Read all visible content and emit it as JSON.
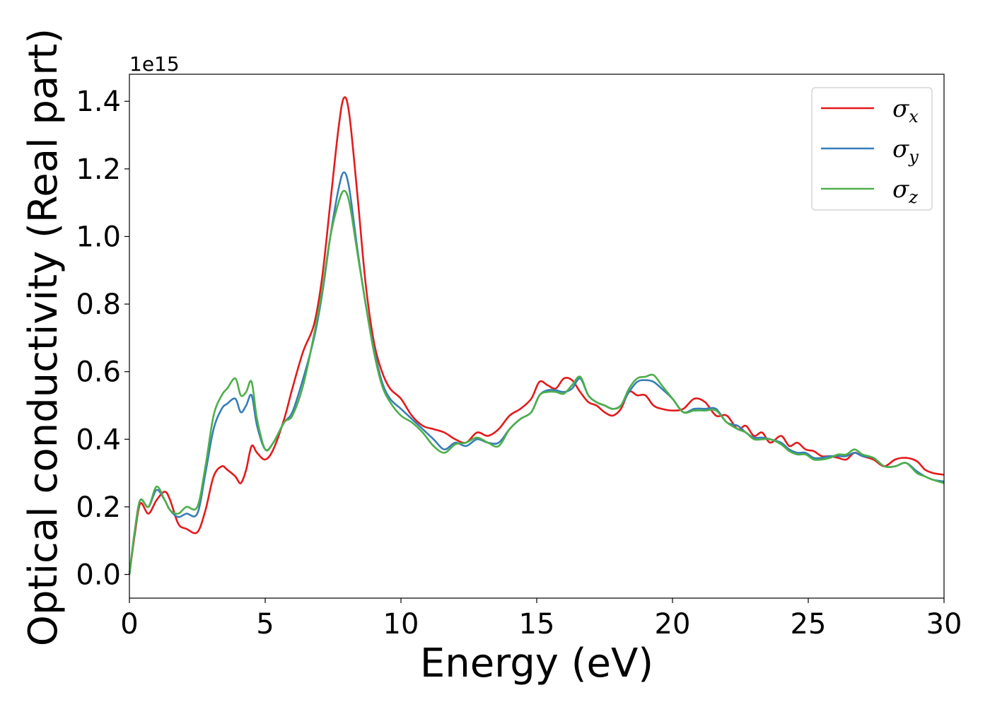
{
  "chart_data": {
    "type": "line",
    "xlabel": "Energy (eV)",
    "ylabel": "Optical conductivity (Real part)",
    "y_offset_label": "1e15",
    "xlim": [
      0,
      30
    ],
    "ylim": [
      -0.07,
      1.48
    ],
    "x_ticks": [
      0,
      5,
      10,
      15,
      20,
      25,
      30
    ],
    "x_tick_labels": [
      "0",
      "5",
      "10",
      "15",
      "20",
      "25",
      "30"
    ],
    "y_ticks": [
      0.0,
      0.2,
      0.4,
      0.6,
      0.8,
      1.0,
      1.2,
      1.4
    ],
    "y_tick_labels": [
      "0.0",
      "0.2",
      "0.4",
      "0.6",
      "0.8",
      "1.0",
      "1.2",
      "1.4"
    ],
    "grid": false,
    "legend_position": "top-right",
    "series": [
      {
        "name": "σ_x",
        "sym": "σ",
        "sub": "x",
        "color": "#e41a1c",
        "x": [
          0,
          0.2,
          0.4,
          0.7,
          1.0,
          1.3,
          1.5,
          1.8,
          2.1,
          2.5,
          2.8,
          3.1,
          3.4,
          3.6,
          3.9,
          4.1,
          4.3,
          4.5,
          4.7,
          5.0,
          5.3,
          5.7,
          6.0,
          6.4,
          6.8,
          7.1,
          7.4,
          7.7,
          7.9,
          8.1,
          8.4,
          8.7,
          9.0,
          9.3,
          9.6,
          10.0,
          10.4,
          10.8,
          11.2,
          11.6,
          12.0,
          12.4,
          12.8,
          13.2,
          13.6,
          14.0,
          14.4,
          14.8,
          15.1,
          15.4,
          15.7,
          16.0,
          16.3,
          16.6,
          16.9,
          17.2,
          17.5,
          17.8,
          18.1,
          18.4,
          18.7,
          19.0,
          19.3,
          19.6,
          20.0,
          20.4,
          20.8,
          21.2,
          21.6,
          22.0,
          22.4,
          22.7,
          23.0,
          23.3,
          23.6,
          24.0,
          24.3,
          24.6,
          24.9,
          25.2,
          25.5,
          25.8,
          26.1,
          26.4,
          26.7,
          27.0,
          27.4,
          27.8,
          28.2,
          28.6,
          29.0,
          29.3,
          29.6,
          30.0
        ],
        "y": [
          0.0,
          0.12,
          0.21,
          0.18,
          0.22,
          0.245,
          0.22,
          0.15,
          0.135,
          0.125,
          0.19,
          0.29,
          0.32,
          0.31,
          0.29,
          0.27,
          0.31,
          0.38,
          0.36,
          0.34,
          0.37,
          0.46,
          0.55,
          0.66,
          0.74,
          0.88,
          1.1,
          1.32,
          1.41,
          1.36,
          1.12,
          0.86,
          0.69,
          0.6,
          0.55,
          0.52,
          0.47,
          0.44,
          0.43,
          0.42,
          0.4,
          0.39,
          0.42,
          0.41,
          0.43,
          0.47,
          0.49,
          0.52,
          0.57,
          0.56,
          0.55,
          0.58,
          0.575,
          0.54,
          0.51,
          0.5,
          0.48,
          0.47,
          0.49,
          0.54,
          0.53,
          0.53,
          0.5,
          0.49,
          0.485,
          0.49,
          0.52,
          0.51,
          0.47,
          0.47,
          0.43,
          0.44,
          0.41,
          0.42,
          0.39,
          0.41,
          0.38,
          0.39,
          0.37,
          0.365,
          0.35,
          0.35,
          0.345,
          0.34,
          0.36,
          0.35,
          0.34,
          0.32,
          0.34,
          0.345,
          0.335,
          0.31,
          0.3,
          0.295
        ]
      },
      {
        "name": "σ_y",
        "sym": "σ",
        "sub": "y",
        "color": "#377eb8",
        "x": [
          0,
          0.2,
          0.4,
          0.7,
          1.0,
          1.3,
          1.5,
          1.8,
          2.1,
          2.5,
          2.8,
          3.1,
          3.4,
          3.6,
          3.9,
          4.1,
          4.3,
          4.5,
          4.7,
          5.0,
          5.3,
          5.7,
          6.0,
          6.4,
          6.8,
          7.1,
          7.4,
          7.7,
          7.9,
          8.1,
          8.4,
          8.7,
          9.0,
          9.3,
          9.6,
          10.0,
          10.4,
          10.8,
          11.2,
          11.6,
          12.0,
          12.4,
          12.8,
          13.2,
          13.6,
          14.0,
          14.4,
          14.8,
          15.1,
          15.4,
          15.7,
          16.0,
          16.3,
          16.6,
          16.9,
          17.2,
          17.5,
          17.8,
          18.1,
          18.4,
          18.7,
          19.0,
          19.3,
          19.6,
          20.0,
          20.4,
          20.8,
          21.2,
          21.6,
          22.0,
          22.4,
          22.7,
          23.0,
          23.3,
          23.6,
          24.0,
          24.3,
          24.6,
          24.9,
          25.2,
          25.5,
          25.8,
          26.1,
          26.4,
          26.7,
          27.0,
          27.4,
          27.8,
          28.2,
          28.6,
          29.0,
          29.3,
          29.6,
          30.0
        ],
        "y": [
          0.0,
          0.13,
          0.22,
          0.2,
          0.25,
          0.22,
          0.19,
          0.17,
          0.18,
          0.18,
          0.3,
          0.43,
          0.49,
          0.505,
          0.52,
          0.48,
          0.5,
          0.53,
          0.44,
          0.37,
          0.39,
          0.45,
          0.48,
          0.58,
          0.7,
          0.83,
          1.0,
          1.14,
          1.19,
          1.14,
          0.96,
          0.8,
          0.67,
          0.57,
          0.52,
          0.49,
          0.46,
          0.43,
          0.4,
          0.37,
          0.39,
          0.38,
          0.4,
          0.39,
          0.39,
          0.43,
          0.46,
          0.48,
          0.53,
          0.545,
          0.545,
          0.54,
          0.55,
          0.58,
          0.53,
          0.51,
          0.5,
          0.49,
          0.5,
          0.54,
          0.57,
          0.575,
          0.57,
          0.55,
          0.52,
          0.48,
          0.49,
          0.49,
          0.49,
          0.45,
          0.44,
          0.42,
          0.405,
          0.405,
          0.4,
          0.39,
          0.37,
          0.36,
          0.36,
          0.345,
          0.345,
          0.35,
          0.35,
          0.35,
          0.36,
          0.35,
          0.345,
          0.32,
          0.32,
          0.33,
          0.305,
          0.29,
          0.28,
          0.275
        ]
      },
      {
        "name": "σ_z",
        "sym": "σ",
        "sub": "z",
        "color": "#4daf4a",
        "x": [
          0,
          0.2,
          0.4,
          0.7,
          1.0,
          1.3,
          1.5,
          1.8,
          2.1,
          2.5,
          2.8,
          3.1,
          3.4,
          3.6,
          3.9,
          4.1,
          4.3,
          4.5,
          4.7,
          5.0,
          5.3,
          5.7,
          6.0,
          6.4,
          6.8,
          7.1,
          7.4,
          7.7,
          7.9,
          8.1,
          8.4,
          8.7,
          9.0,
          9.3,
          9.6,
          10.0,
          10.4,
          10.8,
          11.2,
          11.6,
          12.0,
          12.4,
          12.8,
          13.2,
          13.6,
          14.0,
          14.4,
          14.8,
          15.1,
          15.4,
          15.7,
          16.0,
          16.3,
          16.6,
          16.9,
          17.2,
          17.5,
          17.8,
          18.1,
          18.4,
          18.7,
          19.0,
          19.3,
          19.6,
          20.0,
          20.4,
          20.8,
          21.2,
          21.6,
          22.0,
          22.4,
          22.7,
          23.0,
          23.3,
          23.6,
          24.0,
          24.3,
          24.6,
          24.9,
          25.2,
          25.5,
          25.8,
          26.1,
          26.4,
          26.7,
          27.0,
          27.4,
          27.8,
          28.2,
          28.6,
          29.0,
          29.3,
          29.6,
          30.0
        ],
        "y": [
          0.0,
          0.13,
          0.22,
          0.2,
          0.26,
          0.22,
          0.19,
          0.18,
          0.2,
          0.2,
          0.32,
          0.47,
          0.53,
          0.55,
          0.58,
          0.53,
          0.54,
          0.57,
          0.46,
          0.37,
          0.39,
          0.45,
          0.47,
          0.56,
          0.71,
          0.84,
          1.0,
          1.1,
          1.135,
          1.1,
          0.95,
          0.8,
          0.66,
          0.56,
          0.51,
          0.47,
          0.45,
          0.42,
          0.38,
          0.36,
          0.385,
          0.39,
          0.405,
          0.39,
          0.38,
          0.43,
          0.46,
          0.48,
          0.53,
          0.54,
          0.54,
          0.535,
          0.56,
          0.585,
          0.53,
          0.51,
          0.5,
          0.49,
          0.5,
          0.55,
          0.58,
          0.585,
          0.59,
          0.56,
          0.52,
          0.48,
          0.485,
          0.485,
          0.485,
          0.45,
          0.43,
          0.42,
          0.4,
          0.4,
          0.4,
          0.385,
          0.365,
          0.355,
          0.355,
          0.34,
          0.34,
          0.345,
          0.355,
          0.355,
          0.37,
          0.355,
          0.345,
          0.32,
          0.32,
          0.33,
          0.3,
          0.29,
          0.28,
          0.27
        ]
      }
    ]
  }
}
